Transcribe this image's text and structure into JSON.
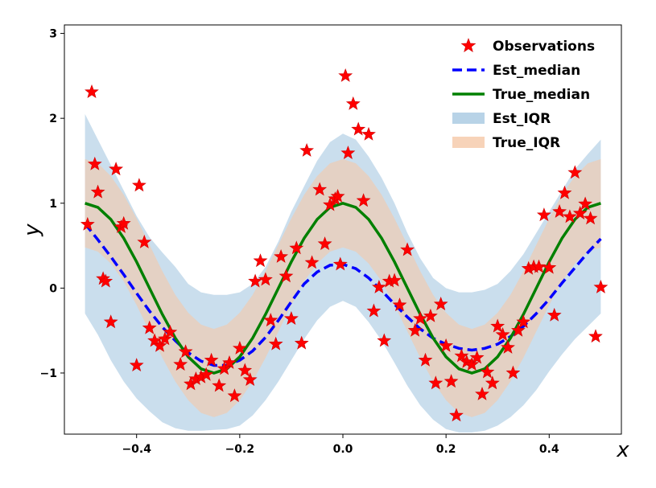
{
  "chart_data": {
    "type": "scatter",
    "xlabel": "x",
    "ylabel": "y",
    "xlim": [
      -0.54,
      0.54
    ],
    "ylim": [
      -1.72,
      3.1
    ],
    "x_ticks": [
      -0.4,
      -0.2,
      0.0,
      0.2,
      0.4
    ],
    "x_tick_labels": [
      "−0.4",
      "−0.2",
      "0.0",
      "0.2",
      "0.4"
    ],
    "y_ticks": [
      -1,
      0,
      1,
      2,
      3
    ],
    "y_tick_labels": [
      "−1",
      "0",
      "1",
      "2",
      "3"
    ],
    "grid": false,
    "legend_position": "top-right",
    "legend": [
      {
        "label": "Observations",
        "kind": "star",
        "color": "#ff0000"
      },
      {
        "label": "Est_median",
        "kind": "dashed-line",
        "color": "#0000ff"
      },
      {
        "label": "True_median",
        "kind": "line",
        "color": "#008000"
      },
      {
        "label": "Est_IQR",
        "kind": "band",
        "color": "#a6c8e1"
      },
      {
        "label": "True_IQR",
        "kind": "band",
        "color": "#f5c8a8"
      }
    ],
    "x_grid": [
      -0.5,
      -0.475,
      -0.45,
      -0.425,
      -0.4,
      -0.375,
      -0.35,
      -0.325,
      -0.3,
      -0.275,
      -0.25,
      -0.225,
      -0.2,
      -0.175,
      -0.15,
      -0.125,
      -0.1,
      -0.075,
      -0.05,
      -0.025,
      0,
      0.025,
      0.05,
      0.075,
      0.1,
      0.125,
      0.15,
      0.175,
      0.2,
      0.225,
      0.25,
      0.275,
      0.3,
      0.325,
      0.35,
      0.375,
      0.4,
      0.425,
      0.45,
      0.475,
      0.5
    ],
    "series": [
      {
        "name": "True_median",
        "values": [
          1.0,
          0.951,
          0.809,
          0.588,
          0.309,
          0.0,
          -0.309,
          -0.588,
          -0.809,
          -0.951,
          -1.0,
          -0.951,
          -0.809,
          -0.588,
          -0.309,
          0.0,
          0.309,
          0.588,
          0.809,
          0.951,
          1.0,
          0.951,
          0.809,
          0.588,
          0.309,
          0.0,
          -0.309,
          -0.588,
          -0.809,
          -0.951,
          -1.0,
          -0.951,
          -0.809,
          -0.588,
          -0.309,
          0.0,
          0.309,
          0.588,
          0.809,
          0.951,
          1.0
        ]
      },
      {
        "name": "Est_median",
        "values": [
          0.76,
          0.57,
          0.37,
          0.16,
          -0.06,
          -0.27,
          -0.46,
          -0.62,
          -0.76,
          -0.86,
          -0.91,
          -0.91,
          -0.85,
          -0.74,
          -0.58,
          -0.38,
          -0.16,
          0.05,
          0.19,
          0.27,
          0.28,
          0.23,
          0.12,
          -0.03,
          -0.19,
          -0.34,
          -0.48,
          -0.59,
          -0.66,
          -0.71,
          -0.73,
          -0.71,
          -0.66,
          -0.57,
          -0.45,
          -0.3,
          -0.13,
          0.06,
          0.24,
          0.42,
          0.58
        ]
      },
      {
        "name": "True_IQR_upper",
        "values": [
          1.52,
          1.47,
          1.32,
          1.1,
          0.82,
          0.51,
          0.2,
          -0.08,
          -0.29,
          -0.43,
          -0.48,
          -0.43,
          -0.29,
          -0.08,
          0.2,
          0.51,
          0.82,
          1.1,
          1.32,
          1.47,
          1.52,
          1.47,
          1.32,
          1.1,
          0.82,
          0.51,
          0.2,
          -0.08,
          -0.29,
          -0.43,
          -0.48,
          -0.43,
          -0.29,
          -0.08,
          0.2,
          0.51,
          0.82,
          1.1,
          1.32,
          1.47,
          1.52
        ]
      },
      {
        "name": "True_IQR_lower",
        "values": [
          0.48,
          0.43,
          0.29,
          0.08,
          -0.2,
          -0.51,
          -0.82,
          -1.1,
          -1.32,
          -1.47,
          -1.52,
          -1.47,
          -1.32,
          -1.1,
          -0.82,
          -0.51,
          -0.2,
          0.08,
          0.29,
          0.43,
          0.48,
          0.43,
          0.29,
          0.08,
          -0.2,
          -0.51,
          -0.82,
          -1.1,
          -1.32,
          -1.47,
          -1.52,
          -1.47,
          -1.32,
          -1.1,
          -0.82,
          -0.51,
          -0.2,
          0.08,
          0.29,
          0.43,
          0.48
        ]
      },
      {
        "name": "Est_IQR_upper",
        "values": [
          2.05,
          1.75,
          1.45,
          1.15,
          0.85,
          0.6,
          0.42,
          0.25,
          0.05,
          -0.05,
          -0.08,
          -0.08,
          -0.05,
          0.05,
          0.25,
          0.55,
          0.9,
          1.2,
          1.5,
          1.72,
          1.82,
          1.75,
          1.55,
          1.3,
          1.0,
          0.65,
          0.35,
          0.12,
          0.0,
          -0.05,
          -0.05,
          -0.02,
          0.05,
          0.2,
          0.4,
          0.65,
          0.9,
          1.15,
          1.4,
          1.58,
          1.75
        ]
      },
      {
        "name": "Est_IQR_lower",
        "values": [
          -0.3,
          -0.55,
          -0.85,
          -1.1,
          -1.3,
          -1.45,
          -1.58,
          -1.65,
          -1.68,
          -1.68,
          -1.67,
          -1.66,
          -1.62,
          -1.5,
          -1.32,
          -1.1,
          -0.85,
          -0.6,
          -0.38,
          -0.22,
          -0.15,
          -0.22,
          -0.4,
          -0.62,
          -0.88,
          -1.15,
          -1.38,
          -1.55,
          -1.66,
          -1.7,
          -1.7,
          -1.68,
          -1.62,
          -1.52,
          -1.38,
          -1.2,
          -0.98,
          -0.78,
          -0.6,
          -0.45,
          -0.3
        ]
      },
      {
        "name": "Observations",
        "points": [
          [
            -0.495,
            0.75
          ],
          [
            -0.487,
            2.31
          ],
          [
            -0.481,
            1.46
          ],
          [
            -0.475,
            1.13
          ],
          [
            -0.465,
            0.11
          ],
          [
            -0.46,
            0.08
          ],
          [
            -0.45,
            -0.4
          ],
          [
            -0.44,
            1.4
          ],
          [
            -0.43,
            0.72
          ],
          [
            -0.425,
            0.76
          ],
          [
            -0.4,
            -0.91
          ],
          [
            -0.395,
            1.21
          ],
          [
            -0.385,
            0.54
          ],
          [
            -0.375,
            -0.47
          ],
          [
            -0.365,
            -0.62
          ],
          [
            -0.355,
            -0.68
          ],
          [
            -0.345,
            -0.6
          ],
          [
            -0.335,
            -0.52
          ],
          [
            -0.315,
            -0.9
          ],
          [
            -0.305,
            -0.75
          ],
          [
            -0.295,
            -1.13
          ],
          [
            -0.285,
            -1.07
          ],
          [
            -0.275,
            -1.05
          ],
          [
            -0.265,
            -1.02
          ],
          [
            -0.255,
            -0.85
          ],
          [
            -0.24,
            -1.15
          ],
          [
            -0.23,
            -0.95
          ],
          [
            -0.22,
            -0.88
          ],
          [
            -0.21,
            -1.27
          ],
          [
            -0.2,
            -0.71
          ],
          [
            -0.19,
            -0.97
          ],
          [
            -0.18,
            -1.08
          ],
          [
            -0.17,
            0.08
          ],
          [
            -0.16,
            0.32
          ],
          [
            -0.15,
            0.1
          ],
          [
            -0.14,
            -0.38
          ],
          [
            -0.13,
            -0.66
          ],
          [
            -0.12,
            0.37
          ],
          [
            -0.11,
            0.14
          ],
          [
            -0.1,
            -0.36
          ],
          [
            -0.09,
            0.47
          ],
          [
            -0.08,
            -0.65
          ],
          [
            -0.07,
            1.62
          ],
          [
            -0.06,
            0.3
          ],
          [
            -0.045,
            1.16
          ],
          [
            -0.035,
            0.52
          ],
          [
            -0.025,
            0.98
          ],
          [
            -0.015,
            1.05
          ],
          [
            -0.01,
            1.08
          ],
          [
            -0.005,
            0.28
          ],
          [
            0.005,
            2.5
          ],
          [
            0.01,
            1.59
          ],
          [
            0.02,
            2.17
          ],
          [
            0.03,
            1.87
          ],
          [
            0.04,
            1.03
          ],
          [
            0.05,
            1.81
          ],
          [
            0.06,
            -0.27
          ],
          [
            0.07,
            0.01
          ],
          [
            0.08,
            -0.62
          ],
          [
            0.09,
            0.08
          ],
          [
            0.1,
            0.09
          ],
          [
            0.11,
            -0.2
          ],
          [
            0.125,
            0.45
          ],
          [
            0.14,
            -0.5
          ],
          [
            0.15,
            -0.36
          ],
          [
            0.16,
            -0.85
          ],
          [
            0.17,
            -0.33
          ],
          [
            0.18,
            -1.12
          ],
          [
            0.19,
            -0.19
          ],
          [
            0.2,
            -0.68
          ],
          [
            0.21,
            -1.1
          ],
          [
            0.22,
            -1.5
          ],
          [
            0.23,
            -0.8
          ],
          [
            0.24,
            -0.87
          ],
          [
            0.25,
            -0.9
          ],
          [
            0.26,
            -0.82
          ],
          [
            0.27,
            -1.25
          ],
          [
            0.28,
            -0.99
          ],
          [
            0.29,
            -1.12
          ],
          [
            0.3,
            -0.45
          ],
          [
            0.31,
            -0.55
          ],
          [
            0.32,
            -0.7
          ],
          [
            0.33,
            -1.0
          ],
          [
            0.34,
            -0.5
          ],
          [
            0.35,
            -0.4
          ],
          [
            0.36,
            0.23
          ],
          [
            0.37,
            0.25
          ],
          [
            0.38,
            0.25
          ],
          [
            0.39,
            0.86
          ],
          [
            0.4,
            0.24
          ],
          [
            0.41,
            -0.32
          ],
          [
            0.42,
            0.9
          ],
          [
            0.43,
            1.12
          ],
          [
            0.44,
            0.84
          ],
          [
            0.45,
            1.36
          ],
          [
            0.46,
            0.88
          ],
          [
            0.47,
            0.99
          ],
          [
            0.48,
            0.82
          ],
          [
            0.49,
            -0.57
          ],
          [
            0.5,
            0.01
          ]
        ]
      }
    ]
  }
}
